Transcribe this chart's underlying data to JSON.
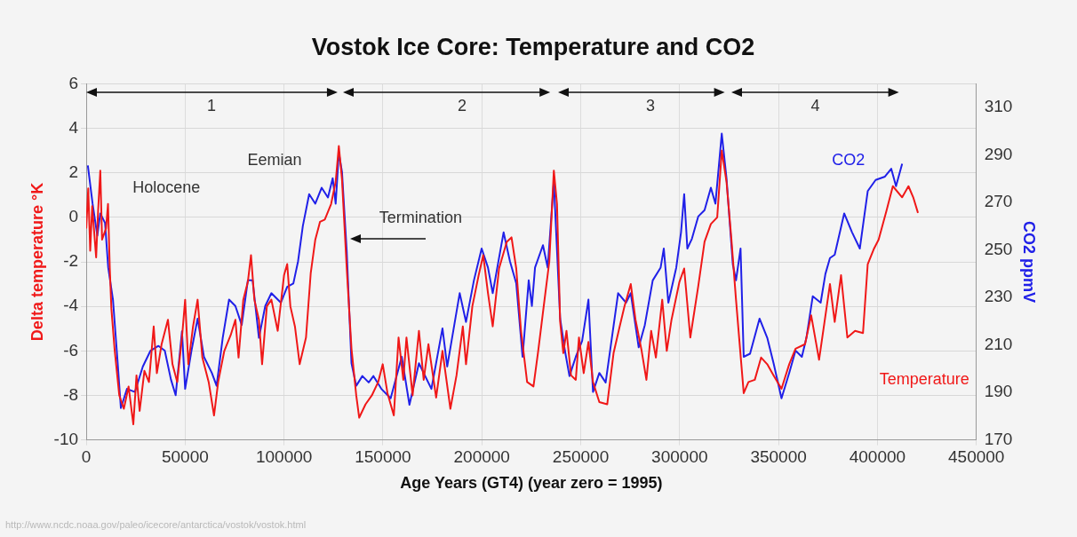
{
  "chart_data": {
    "type": "line",
    "title": "Vostok Ice Core: Temperature and CO2",
    "xlabel": "Age Years (GT4) (year zero = 1995)",
    "ylabel": "Delta temperature °K",
    "y2label": "CO2 ppmV",
    "xlim": [
      0,
      450000
    ],
    "xticks": [
      0,
      50000,
      100000,
      150000,
      200000,
      250000,
      300000,
      350000,
      400000,
      450000
    ],
    "ylim": [
      -10,
      6
    ],
    "yticks": [
      -10,
      -8,
      -6,
      -4,
      -2,
      0,
      2,
      4,
      6
    ],
    "y2lim": [
      170,
      320
    ],
    "y2ticks": [
      170,
      190,
      210,
      230,
      250,
      270,
      290,
      310
    ],
    "grid": true,
    "legend": false,
    "marker": "none",
    "line_style": "solid",
    "series": [
      {
        "name": "Temperature",
        "color": "#f01818",
        "x": [
          0,
          1000,
          2000,
          3000,
          5000,
          6000,
          7100,
          8000,
          10000,
          11000,
          11900,
          12700,
          14300,
          16700,
          19000,
          21400,
          23800,
          25400,
          27000,
          29400,
          31700,
          34100,
          35700,
          38100,
          41300,
          43600,
          46000,
          48400,
          50000,
          51600,
          54000,
          56300,
          58700,
          61900,
          64600,
          66700,
          69800,
          73000,
          75400,
          77000,
          79400,
          81700,
          83300,
          85000,
          87300,
          88900,
          91300,
          93600,
          96800,
          100000,
          101600,
          103200,
          105500,
          107900,
          111100,
          113500,
          115800,
          118200,
          120600,
          123800,
          126100,
          127700,
          129300,
          131700,
          134100,
          136500,
          138000,
          141200,
          144400,
          147600,
          149900,
          152300,
          155500,
          157900,
          160300,
          161900,
          165000,
          168200,
          170600,
          173000,
          176900,
          180100,
          184100,
          187200,
          190400,
          192000,
          195200,
          198400,
          200700,
          203100,
          205500,
          208700,
          212600,
          215000,
          217400,
          219800,
          222900,
          226100,
          228500,
          231700,
          234100,
          236400,
          238000,
          239600,
          241200,
          242800,
          245100,
          247500,
          249100,
          251500,
          253900,
          256200,
          259400,
          263400,
          266600,
          269700,
          272100,
          275300,
          277700,
          280800,
          283200,
          285600,
          288000,
          291200,
          293500,
          295900,
          299900,
          302300,
          305400,
          309400,
          312600,
          315800,
          319000,
          321300,
          323700,
          326100,
          328500,
          332400,
          334800,
          338000,
          341200,
          344300,
          347500,
          351500,
          355400,
          358600,
          363400,
          366500,
          370500,
          376000,
          378400,
          381600,
          384800,
          388700,
          392700,
          395100,
          398300,
          400600,
          404600,
          407800,
          412500,
          415700,
          418100,
          420500
        ],
        "values": [
          -0.5,
          1.3,
          -1.5,
          0.5,
          -1.8,
          0.3,
          2.1,
          -1,
          -0.5,
          0.6,
          -2.3,
          -4.1,
          -5.9,
          -8,
          -8.6,
          -7.6,
          -9.3,
          -7.1,
          -8.7,
          -6.9,
          -7.4,
          -4.9,
          -7,
          -5.7,
          -4.6,
          -6.6,
          -7.4,
          -5.4,
          -3.7,
          -6.6,
          -4.9,
          -3.7,
          -6.3,
          -7.4,
          -8.9,
          -7.4,
          -6,
          -5.3,
          -4.6,
          -6.3,
          -3.7,
          -2.9,
          -1.7,
          -3.7,
          -4.6,
          -6.6,
          -4,
          -3.7,
          -5.1,
          -2.6,
          -2.1,
          -4,
          -4.9,
          -6.6,
          -5.4,
          -2.5,
          -1,
          -0.2,
          -0.1,
          0.6,
          1.6,
          3.2,
          1.7,
          -2.3,
          -5.9,
          -8,
          -9,
          -8.4,
          -8,
          -7.4,
          -6.6,
          -7.9,
          -8.9,
          -5.4,
          -7.3,
          -5.4,
          -8,
          -5.1,
          -7.3,
          -5.7,
          -8.1,
          -6,
          -8.6,
          -7.1,
          -4.9,
          -6.6,
          -4,
          -2.6,
          -1.7,
          -3.4,
          -4.9,
          -2.3,
          -1.1,
          -0.9,
          -2.3,
          -5.1,
          -7.4,
          -7.6,
          -6,
          -3.7,
          -2,
          2.1,
          0.6,
          -4.7,
          -6.1,
          -5.1,
          -7.1,
          -7.3,
          -5.4,
          -7,
          -5.6,
          -7.4,
          -8.3,
          -8.4,
          -6.1,
          -4.9,
          -4,
          -3,
          -4.6,
          -6,
          -7.3,
          -5.1,
          -6.3,
          -3.7,
          -6,
          -4.6,
          -2.9,
          -2.3,
          -5.4,
          -3.1,
          -1.1,
          -0.3,
          0,
          3,
          1.6,
          -0.9,
          -3.7,
          -7.9,
          -7.4,
          -7.3,
          -6.3,
          -6.6,
          -7.1,
          -7.7,
          -6.6,
          -5.9,
          -5.7,
          -4.4,
          -6.4,
          -3,
          -4.7,
          -2.6,
          -5.4,
          -5.1,
          -5.2,
          -2.1,
          -1.4,
          -1,
          0.3,
          1.4,
          0.9,
          1.4,
          0.9,
          0.2
        ]
      },
      {
        "name": "CO2",
        "color": "#2020e8",
        "axis": "y2",
        "x": [
          800,
          3200,
          5600,
          7100,
          9500,
          11100,
          13500,
          15900,
          17500,
          20600,
          24600,
          28600,
          32500,
          36500,
          39700,
          42800,
          45200,
          48400,
          50000,
          53200,
          56300,
          59500,
          63500,
          65900,
          69000,
          72200,
          75400,
          78600,
          81700,
          84100,
          87300,
          90500,
          93600,
          98400,
          101600,
          104700,
          107100,
          109500,
          112700,
          115800,
          119000,
          122200,
          124600,
          126100,
          127700,
          129300,
          131700,
          134100,
          136500,
          139600,
          142800,
          145200,
          149200,
          153900,
          159500,
          163400,
          168200,
          174500,
          180100,
          182500,
          188800,
          192000,
          196000,
          199900,
          203100,
          205500,
          211000,
          214200,
          217400,
          220600,
          223700,
          225300,
          226900,
          230900,
          233300,
          236400,
          239600,
          242000,
          244300,
          247500,
          250700,
          253900,
          256200,
          259400,
          262600,
          268900,
          272900,
          275300,
          279300,
          282400,
          286400,
          290400,
          292000,
          294300,
          298300,
          300700,
          302300,
          303900,
          306200,
          309400,
          312600,
          315800,
          318100,
          321300,
          323700,
          326900,
          328500,
          330800,
          332400,
          335600,
          340400,
          344300,
          347500,
          351500,
          355400,
          358600,
          361800,
          364100,
          367300,
          371300,
          373700,
          376000,
          378400,
          383200,
          387200,
          391100,
          395100,
          399100,
          403800,
          407000,
          409400,
          412500
        ],
        "values": [
          285.6,
          269.5,
          256,
          265.4,
          261.4,
          242.6,
          229.1,
          202.3,
          183.4,
          191.5,
          190.2,
          200.9,
          207.6,
          209.6,
          207.6,
          195.5,
          188.8,
          215.7,
          191.5,
          207.6,
          221.1,
          205,
          198.2,
          192.8,
          213,
          229.1,
          226.4,
          218.4,
          237.2,
          237.2,
          213,
          226.4,
          231.8,
          227.8,
          234.5,
          235.9,
          245.3,
          260.1,
          273.5,
          269.5,
          276.2,
          272.1,
          280.2,
          269.5,
          291,
          282.9,
          249.3,
          202.3,
          192.8,
          196.9,
          194.2,
          196.9,
          191.5,
          187.5,
          205,
          184.8,
          202.3,
          191.5,
          217,
          200.9,
          231.8,
          219.7,
          237.2,
          250.6,
          242.6,
          231.8,
          257.4,
          245.3,
          235.9,
          205,
          237.2,
          226.4,
          242.6,
          252,
          242.6,
          278.9,
          221.1,
          207.6,
          196.9,
          205,
          211.7,
          229.1,
          190.2,
          198.2,
          194.2,
          231.8,
          227.8,
          231.8,
          209,
          218.4,
          237.2,
          242.6,
          250.6,
          227.8,
          242.6,
          257.4,
          273.5,
          250.6,
          254.7,
          264.1,
          266.8,
          276.2,
          269.5,
          299,
          280.2,
          243.9,
          237.2,
          250.6,
          205,
          206.3,
          221.1,
          213,
          202.3,
          187.5,
          198.2,
          207.6,
          205,
          213,
          230.5,
          227.8,
          239.9,
          246.6,
          248,
          265.4,
          257.4,
          250.6,
          274.8,
          279.5,
          280.9,
          284.2,
          276.9,
          286.3
        ]
      }
    ],
    "annotations": [
      "1",
      "2",
      "3",
      "4",
      "Holocene",
      "Eemian",
      "Termination",
      "http://www.ncdc.noaa.gov/paleo/icecore/antarctica/vostok/vostok.html"
    ]
  }
}
